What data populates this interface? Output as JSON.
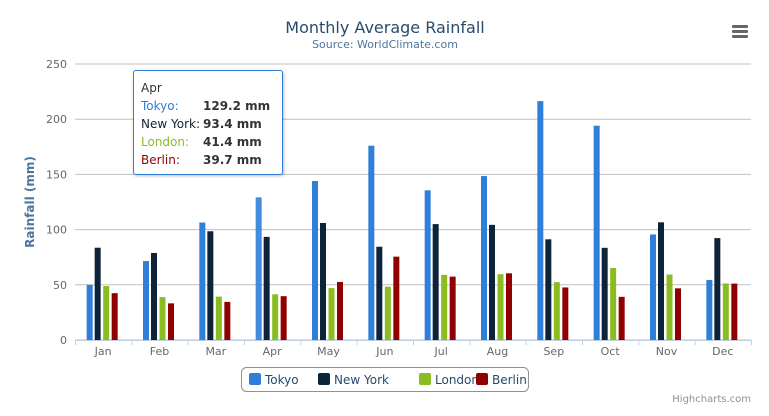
{
  "chart_data": {
    "type": "bar",
    "title": "Monthly Average Rainfall",
    "subtitle": "Source: WorldClimate.com",
    "xlabel": "",
    "ylabel": "Rainfall (mm)",
    "ylim": [
      0,
      250
    ],
    "yticks": [
      0,
      50,
      100,
      150,
      200,
      250
    ],
    "grid": true,
    "legend_position": "bottom",
    "categories": [
      "Jan",
      "Feb",
      "Mar",
      "Apr",
      "May",
      "Jun",
      "Jul",
      "Aug",
      "Sep",
      "Oct",
      "Nov",
      "Dec"
    ],
    "series": [
      {
        "name": "Tokyo",
        "color": "#2f7ed8",
        "values": [
          49.9,
          71.5,
          106.4,
          129.2,
          144.0,
          176.0,
          135.6,
          148.5,
          216.4,
          194.1,
          95.6,
          54.4
        ]
      },
      {
        "name": "New York",
        "color": "#0d233a",
        "values": [
          83.6,
          78.8,
          98.5,
          93.4,
          106.0,
          84.5,
          105.0,
          104.3,
          91.2,
          83.5,
          106.6,
          92.3
        ]
      },
      {
        "name": "London",
        "color": "#8bbc21",
        "values": [
          48.9,
          38.8,
          39.3,
          41.4,
          47.0,
          48.3,
          59.0,
          59.6,
          52.4,
          65.2,
          59.3,
          51.2
        ]
      },
      {
        "name": "Berlin",
        "color": "#910000",
        "values": [
          42.4,
          33.2,
          34.5,
          39.7,
          52.6,
          75.5,
          57.4,
          60.4,
          47.6,
          39.1,
          46.8,
          51.1
        ]
      }
    ]
  },
  "tooltip": {
    "header": "Apr",
    "rows": [
      {
        "name": "Tokyo:",
        "value": "129.2 mm",
        "color": "#2f7ed8"
      },
      {
        "name": "New York:",
        "value": "93.4 mm",
        "color": "#0d233a"
      },
      {
        "name": "London:",
        "value": "41.4 mm",
        "color": "#8bbc21"
      },
      {
        "name": "Berlin:",
        "value": "39.7 mm",
        "color": "#910000"
      }
    ]
  },
  "credits": "Highcharts.com",
  "menu_icon": "hamburger-menu-icon"
}
